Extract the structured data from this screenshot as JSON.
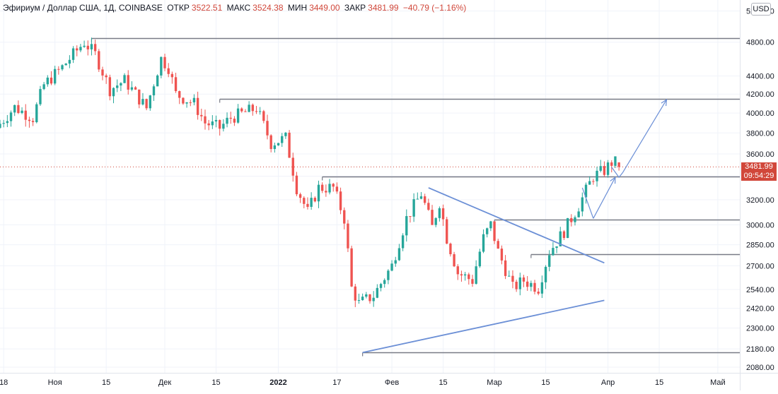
{
  "header": {
    "symbol": "Эфириум / Доллар США, 1Д, COINBASE",
    "open_label": "ОТКР",
    "open": "3522.51",
    "high_label": "МАКС",
    "high": "3524.38",
    "low_label": "МИН",
    "low": "3449.00",
    "close_label": "ЗАКР",
    "close": "3481.99",
    "change": "−40.79 (−1.16%)"
  },
  "currency": "USD",
  "last_price": {
    "price": "3481.99",
    "countdown": "09:54:29",
    "color": "#d1473a"
  },
  "colors": {
    "up": "#26a69a",
    "down": "#ef5350",
    "pattern": "#6b8fd6",
    "level": "#787b86",
    "grid": "#f0f3fa"
  },
  "chart_data": {
    "type": "candlestick",
    "y_axis": {
      "scale": "log",
      "range": [
        2050,
        5350
      ],
      "ticks": [
        5200,
        4800,
        4400,
        4200,
        4000,
        3800,
        3600,
        3400,
        3200,
        3000,
        2850,
        2700,
        2540,
        2420,
        2300,
        2180,
        2080
      ]
    },
    "x_axis": {
      "range": [
        "2021-10-17",
        "2022-05-07"
      ],
      "tick_labels": [
        {
          "date": "2021-10-18",
          "label": "18"
        },
        {
          "date": "2021-11-01",
          "label": "Ноя"
        },
        {
          "date": "2021-11-15",
          "label": "15"
        },
        {
          "date": "2021-12-01",
          "label": "Дек"
        },
        {
          "date": "2021-12-15",
          "label": "15"
        },
        {
          "date": "2022-01-01",
          "label": "2022"
        },
        {
          "date": "2022-01-17",
          "label": "17"
        },
        {
          "date": "2022-02-01",
          "label": "Фев"
        },
        {
          "date": "2022-02-15",
          "label": "15"
        },
        {
          "date": "2022-03-01",
          "label": "Мар"
        },
        {
          "date": "2022-03-15",
          "label": "15"
        },
        {
          "date": "2022-04-01",
          "label": "Апр"
        },
        {
          "date": "2022-04-15",
          "label": "15"
        },
        {
          "date": "2022-05-01",
          "label": "Май"
        }
      ]
    },
    "anchors": [
      {
        "date": "2021-10-17",
        "price": 3850
      },
      {
        "date": "2021-10-22",
        "price": 4060
      },
      {
        "date": "2021-10-27",
        "price": 3950
      },
      {
        "date": "2021-10-30",
        "price": 4300
      },
      {
        "date": "2021-11-04",
        "price": 4500
      },
      {
        "date": "2021-11-10",
        "price": 4800
      },
      {
        "date": "2021-11-13",
        "price": 4650
      },
      {
        "date": "2021-11-17",
        "price": 4250
      },
      {
        "date": "2021-11-21",
        "price": 4350
      },
      {
        "date": "2021-11-27",
        "price": 4050
      },
      {
        "date": "2021-12-01",
        "price": 4600
      },
      {
        "date": "2021-12-03",
        "price": 4500
      },
      {
        "date": "2021-12-05",
        "price": 4200
      },
      {
        "date": "2021-12-10",
        "price": 4100
      },
      {
        "date": "2021-12-13",
        "price": 3900
      },
      {
        "date": "2021-12-17",
        "price": 3850
      },
      {
        "date": "2021-12-20",
        "price": 3950
      },
      {
        "date": "2021-12-27",
        "price": 4050
      },
      {
        "date": "2021-12-31",
        "price": 3700
      },
      {
        "date": "2022-01-04",
        "price": 3750
      },
      {
        "date": "2022-01-07",
        "price": 3300
      },
      {
        "date": "2022-01-10",
        "price": 3100
      },
      {
        "date": "2022-01-13",
        "price": 3300
      },
      {
        "date": "2022-01-17",
        "price": 3300
      },
      {
        "date": "2022-01-20",
        "price": 3050
      },
      {
        "date": "2022-01-22",
        "price": 2550
      },
      {
        "date": "2022-01-24",
        "price": 2450
      },
      {
        "date": "2022-01-28",
        "price": 2500
      },
      {
        "date": "2022-02-02",
        "price": 2700
      },
      {
        "date": "2022-02-06",
        "price": 3050
      },
      {
        "date": "2022-02-10",
        "price": 3250
      },
      {
        "date": "2022-02-13",
        "price": 2980
      },
      {
        "date": "2022-02-15",
        "price": 3180
      },
      {
        "date": "2022-02-17",
        "price": 2900
      },
      {
        "date": "2022-02-20",
        "price": 2650
      },
      {
        "date": "2022-02-24",
        "price": 2600
      },
      {
        "date": "2022-02-27",
        "price": 2900
      },
      {
        "date": "2022-03-01",
        "price": 3000
      },
      {
        "date": "2022-03-03",
        "price": 2800
      },
      {
        "date": "2022-03-07",
        "price": 2550
      },
      {
        "date": "2022-03-10",
        "price": 2600
      },
      {
        "date": "2022-03-14",
        "price": 2550
      },
      {
        "date": "2022-03-17",
        "price": 2800
      },
      {
        "date": "2022-03-21",
        "price": 2950
      },
      {
        "date": "2022-03-25",
        "price": 3150
      },
      {
        "date": "2022-03-29",
        "price": 3400
      },
      {
        "date": "2022-04-01",
        "price": 3450
      },
      {
        "date": "2022-04-03",
        "price": 3522.51
      }
    ],
    "last_candle": {
      "open": 3522.51,
      "high": 3524.38,
      "low": 3449.0,
      "close": 3481.99
    },
    "horizontal_levels": [
      {
        "price": 4850,
        "from": "2021-11-11"
      },
      {
        "price": 4150,
        "from": "2021-12-16"
      },
      {
        "price": 3400,
        "from": "2022-01-13"
      },
      {
        "price": 3040,
        "from": "2022-03-01"
      },
      {
        "price": 2780,
        "from": "2022-03-11"
      },
      {
        "price": 2160,
        "from": "2022-01-24"
      }
    ],
    "trendlines": [
      {
        "from": {
          "date": "2022-02-11",
          "price": 3300
        },
        "to": {
          "date": "2022-03-31",
          "price": 2720
        }
      },
      {
        "from": {
          "date": "2022-01-24",
          "price": 2160
        },
        "to": {
          "date": "2022-03-31",
          "price": 2470
        }
      }
    ],
    "projection_arrows": [
      {
        "from": {
          "date": "2022-03-28",
          "price": 3050
        },
        "to": {
          "date": "2022-04-03",
          "price": 3390
        }
      },
      {
        "from": {
          "date": "2022-04-05",
          "price": 3430
        },
        "to": {
          "date": "2022-04-17",
          "price": 4140
        }
      }
    ]
  }
}
